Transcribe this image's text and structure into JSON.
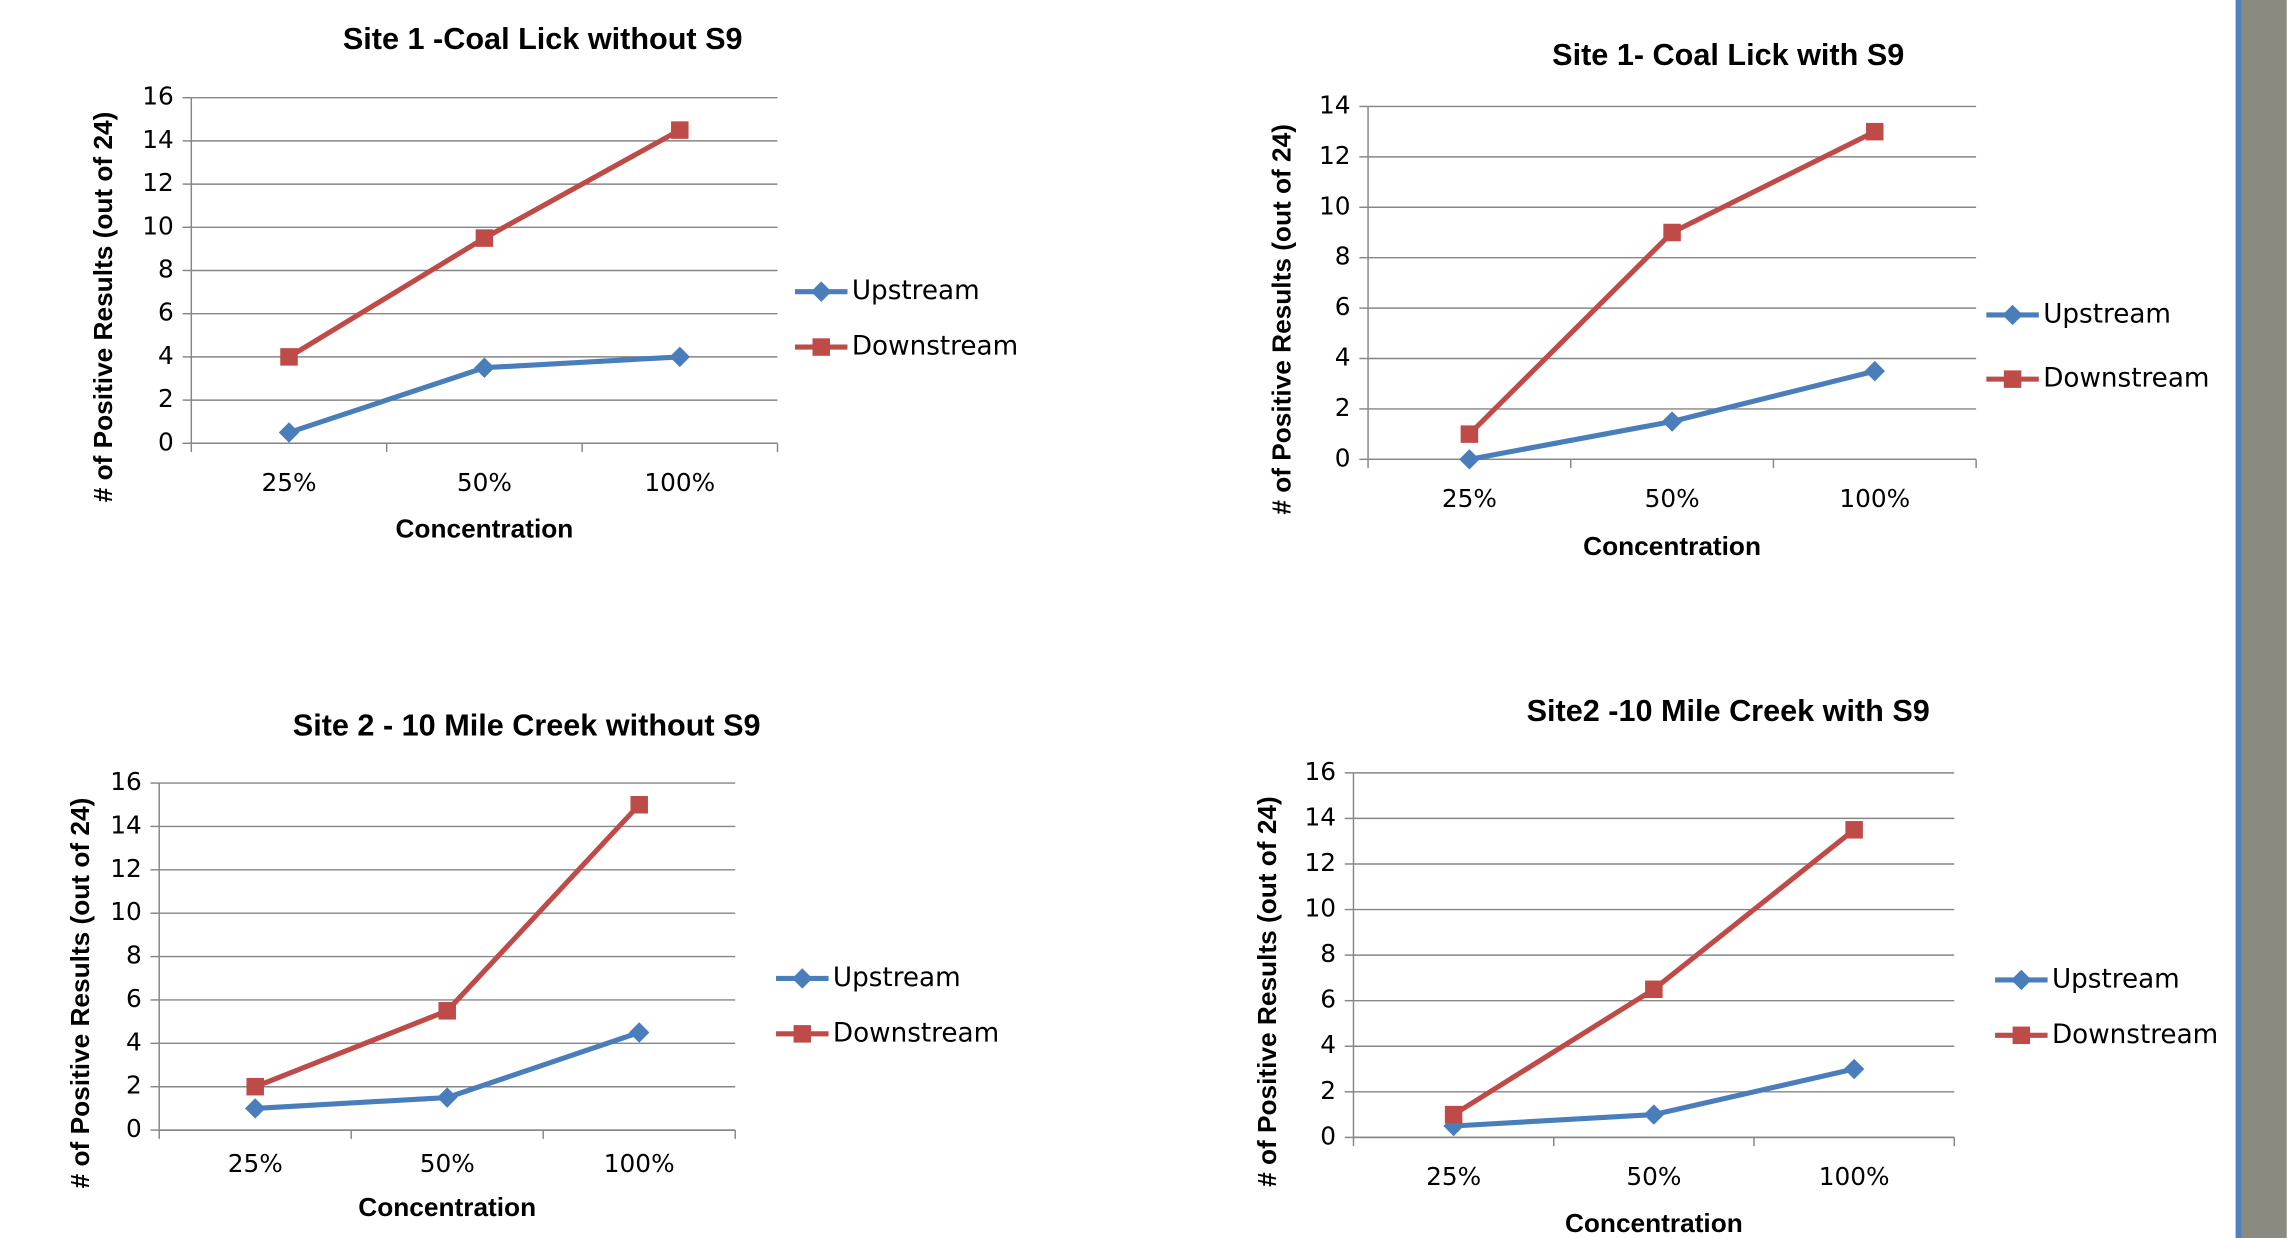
{
  "chart_data": [
    {
      "type": "line",
      "title": "Site 1 -Coal Lick without S9",
      "x_label": "Concentration",
      "y_label": "# of Positive Results (out of 24)",
      "categories": [
        "25%",
        "50%",
        "100%"
      ],
      "series": [
        {
          "name": "Upstream",
          "color": "#4a7ebb",
          "marker": "diamond",
          "values": [
            0.5,
            3.5,
            4
          ]
        },
        {
          "name": "Downstream",
          "color": "#be4b48",
          "marker": "square",
          "values": [
            4,
            9.5,
            14.5
          ]
        }
      ],
      "ylim": [
        0,
        16
      ],
      "yticks": [
        0,
        2,
        4,
        6,
        8,
        10,
        12,
        14,
        16
      ],
      "grid": true,
      "legend": "right"
    },
    {
      "type": "line",
      "title": "Site 1- Coal Lick with S9",
      "x_label": "Concentration",
      "y_label": "# of Positive Results (out of 24)",
      "categories": [
        "25%",
        "50%",
        "100%"
      ],
      "series": [
        {
          "name": "Upstream",
          "color": "#4a7ebb",
          "marker": "diamond",
          "values": [
            0,
            1.5,
            3.5
          ]
        },
        {
          "name": "Downstream",
          "color": "#be4b48",
          "marker": "square",
          "values": [
            1,
            9,
            13
          ]
        }
      ],
      "ylim": [
        0,
        14
      ],
      "yticks": [
        0,
        2,
        4,
        6,
        8,
        10,
        12,
        14
      ],
      "grid": true,
      "legend": "right"
    },
    {
      "type": "line",
      "title": "Site 2 - 10 Mile Creek without S9",
      "x_label": "Concentration",
      "y_label": "# of Positive Results (out of 24)",
      "categories": [
        "25%",
        "50%",
        "100%"
      ],
      "series": [
        {
          "name": "Upstream",
          "color": "#4a7ebb",
          "marker": "diamond",
          "values": [
            1,
            1.5,
            4.5
          ]
        },
        {
          "name": "Downstream",
          "color": "#be4b48",
          "marker": "square",
          "values": [
            2,
            5.5,
            15
          ]
        }
      ],
      "ylim": [
        0,
        16
      ],
      "yticks": [
        0,
        2,
        4,
        6,
        8,
        10,
        12,
        14,
        16
      ],
      "grid": true,
      "legend": "right"
    },
    {
      "type": "line",
      "title": "Site2 -10 Mile Creek with S9",
      "x_label": "Concentration",
      "y_label": "# of Positive Results (out of 24)",
      "categories": [
        "25%",
        "50%",
        "100%"
      ],
      "series": [
        {
          "name": "Upstream",
          "color": "#4a7ebb",
          "marker": "diamond",
          "values": [
            0.5,
            1,
            3
          ]
        },
        {
          "name": "Downstream",
          "color": "#be4b48",
          "marker": "square",
          "values": [
            1,
            6.5,
            13.5
          ]
        }
      ],
      "ylim": [
        0,
        16
      ],
      "yticks": [
        0,
        2,
        4,
        6,
        8,
        10,
        12,
        14,
        16
      ],
      "grid": true,
      "legend": "right"
    }
  ]
}
